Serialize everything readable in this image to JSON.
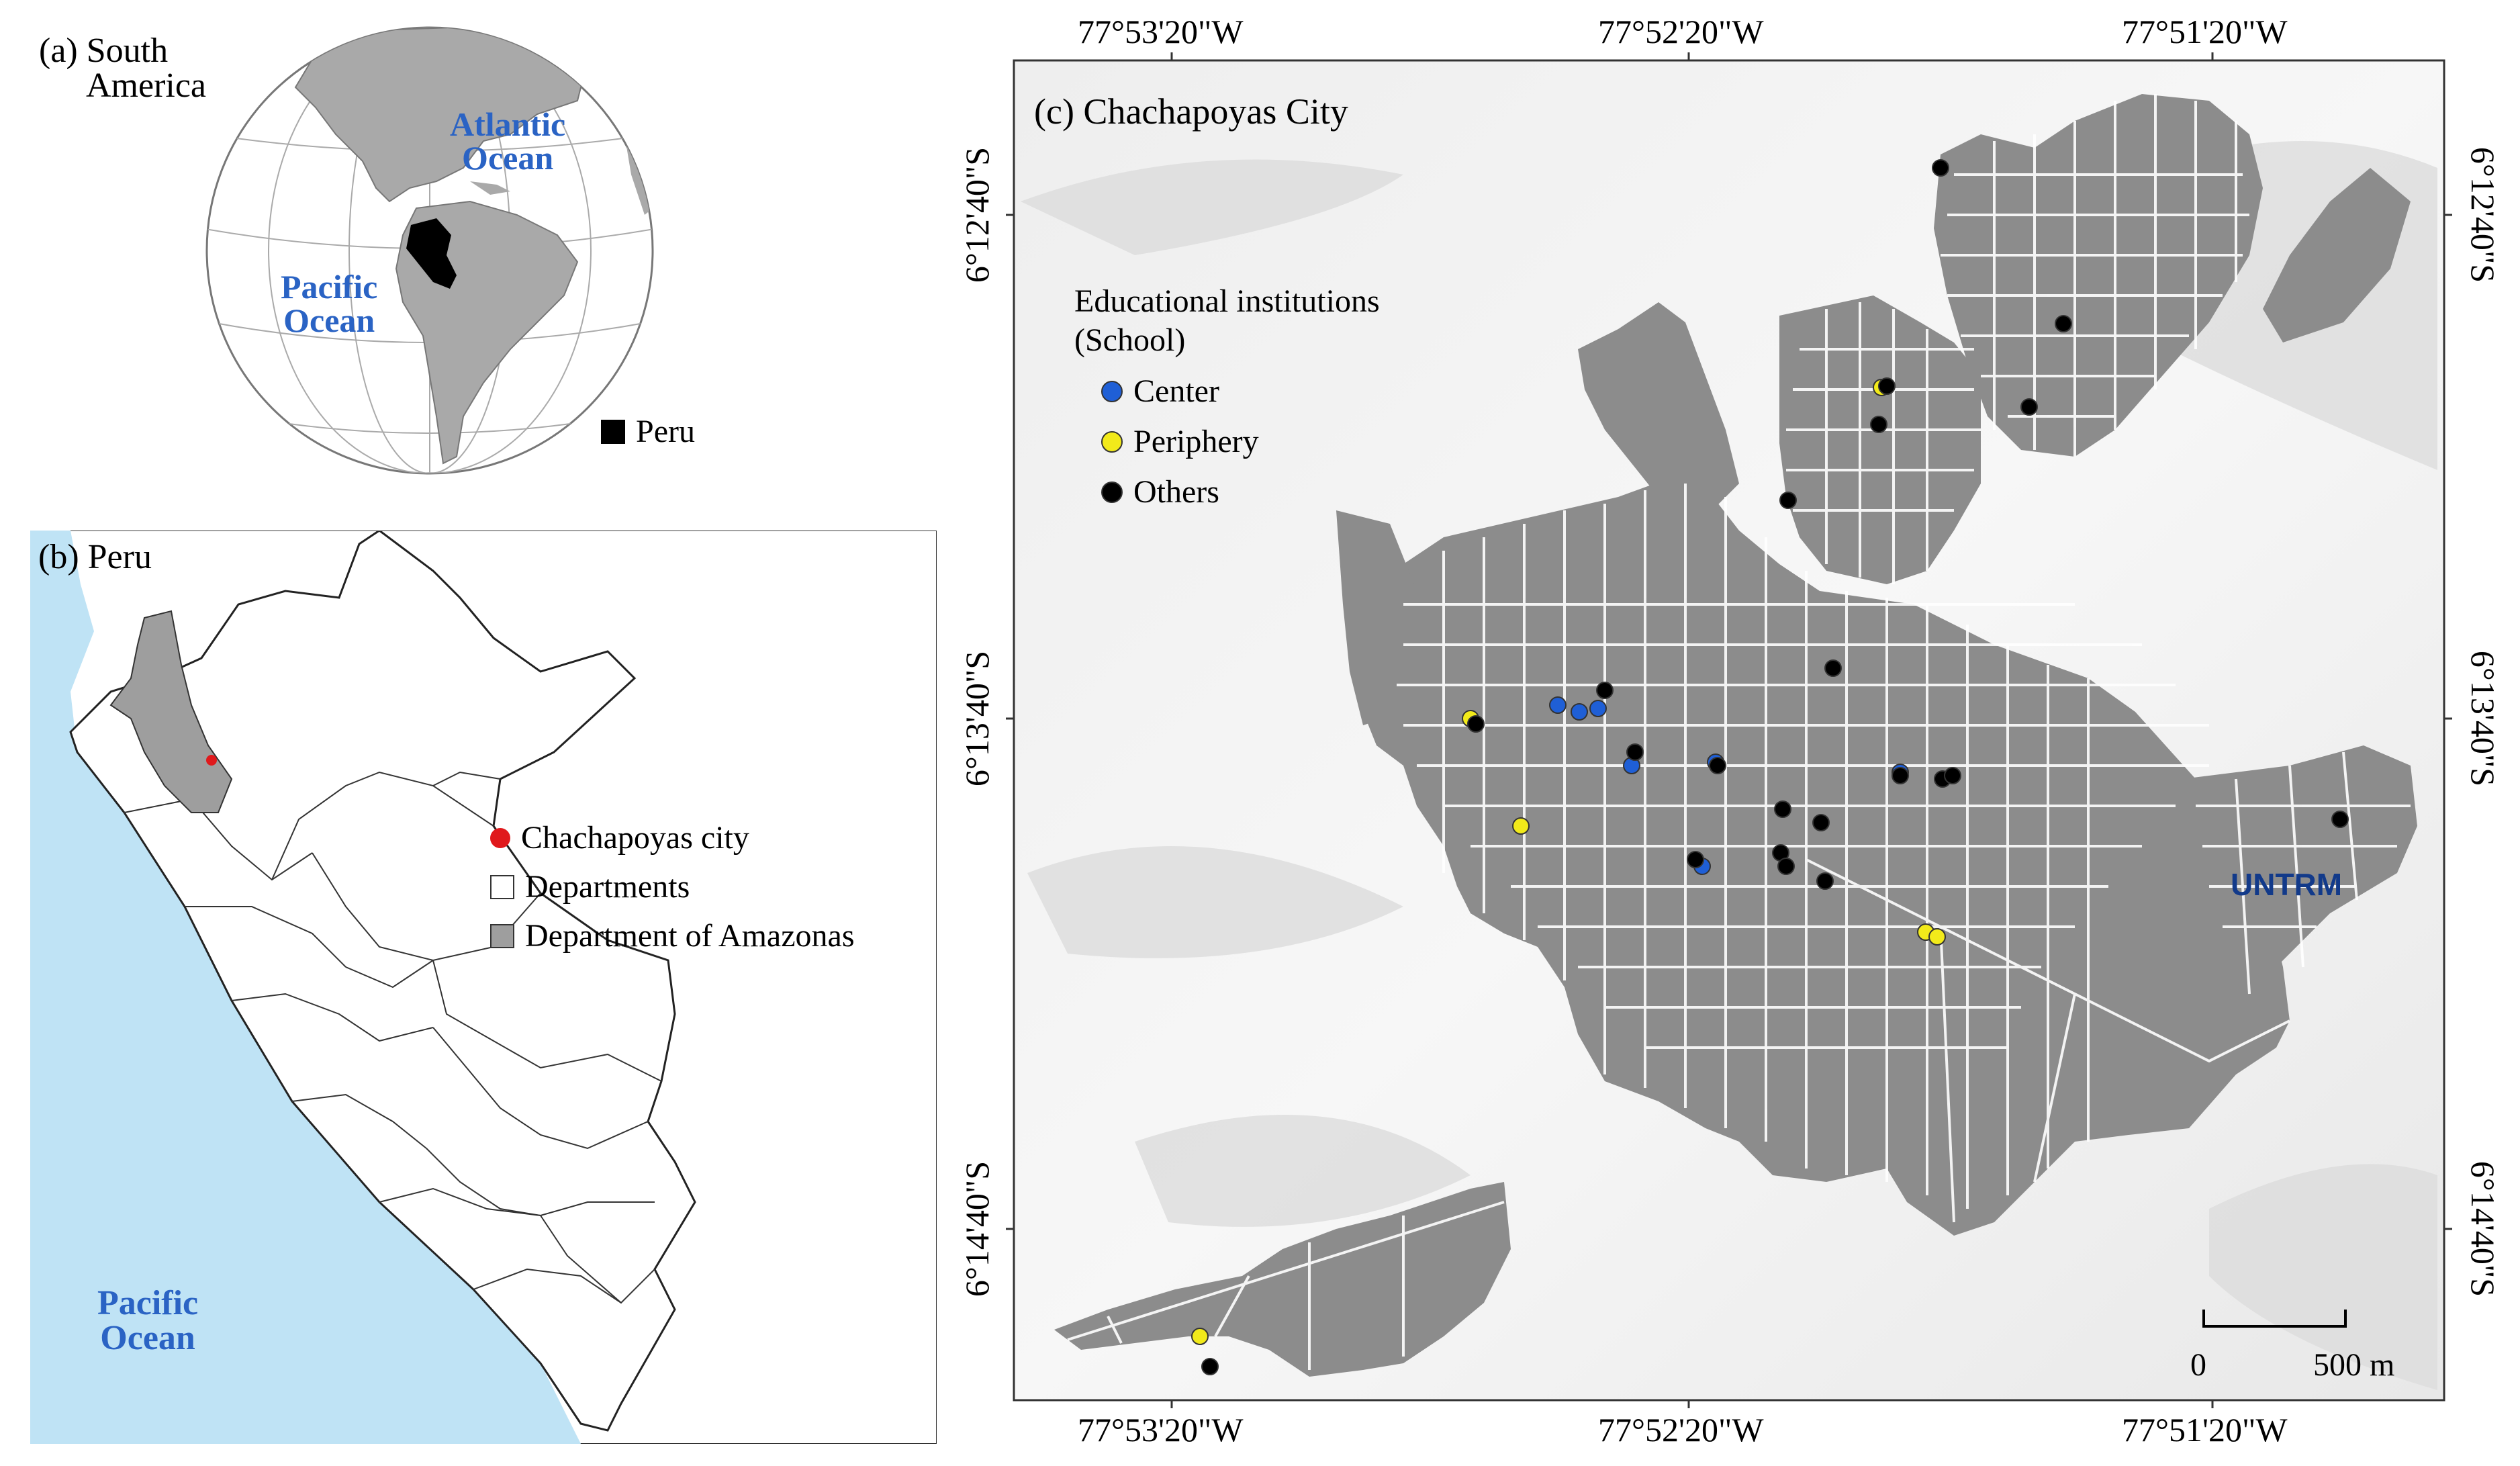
{
  "panel_a": {
    "label_line1": "(a) South",
    "label_line2": "America",
    "atlantic_line1": "Atlantic",
    "atlantic_line2": "Ocean",
    "pacific_line1": "Pacific",
    "pacific_line2": "Ocean",
    "legend_peru": "Peru"
  },
  "panel_b": {
    "label": "(b) Peru",
    "pacific_line1": "Pacific",
    "pacific_line2": "Ocean",
    "legend": [
      {
        "label": "Chachapoyas city",
        "symbol": "red-dot"
      },
      {
        "label": "Departments",
        "symbol": "white-box"
      },
      {
        "label": "Department of Amazonas",
        "symbol": "gray-box"
      }
    ]
  },
  "panel_c": {
    "label": "(c) Chachapoyas City",
    "legend_title_line1": "Educational institutions",
    "legend_title_line2": "(School)",
    "legend": [
      {
        "label": "Center",
        "color": "#1f5fd6"
      },
      {
        "label": "Periphery",
        "color": "#f2ea1a"
      },
      {
        "label": "Others",
        "color": "#000000"
      }
    ],
    "untrm": "UNTRM",
    "scale_zero": "0",
    "scale_end": "500 m",
    "top_ticks": [
      "77°53'20\"W",
      "77°52'20\"W",
      "77°51'20\"W"
    ],
    "bottom_ticks": [
      "77°53'20\"W",
      "77°52'20\"W",
      "77°51'20\"W"
    ],
    "left_ticks": [
      "6°12'40\"S",
      "6°13'40\"S",
      "6°14'40\"S"
    ],
    "right_ticks": [
      "6°12'40\"S",
      "6°13'40\"S",
      "6°14'40\"S"
    ]
  },
  "colors": {
    "sea": "#bfe3f5",
    "land_gray": "#a3a3a3",
    "urban": "#8c8c8c",
    "center": "#1f5fd6",
    "periphery": "#f2ea1a",
    "others": "#000000",
    "city_dot": "#e0191c",
    "ocean_text": "#2a63c4"
  }
}
